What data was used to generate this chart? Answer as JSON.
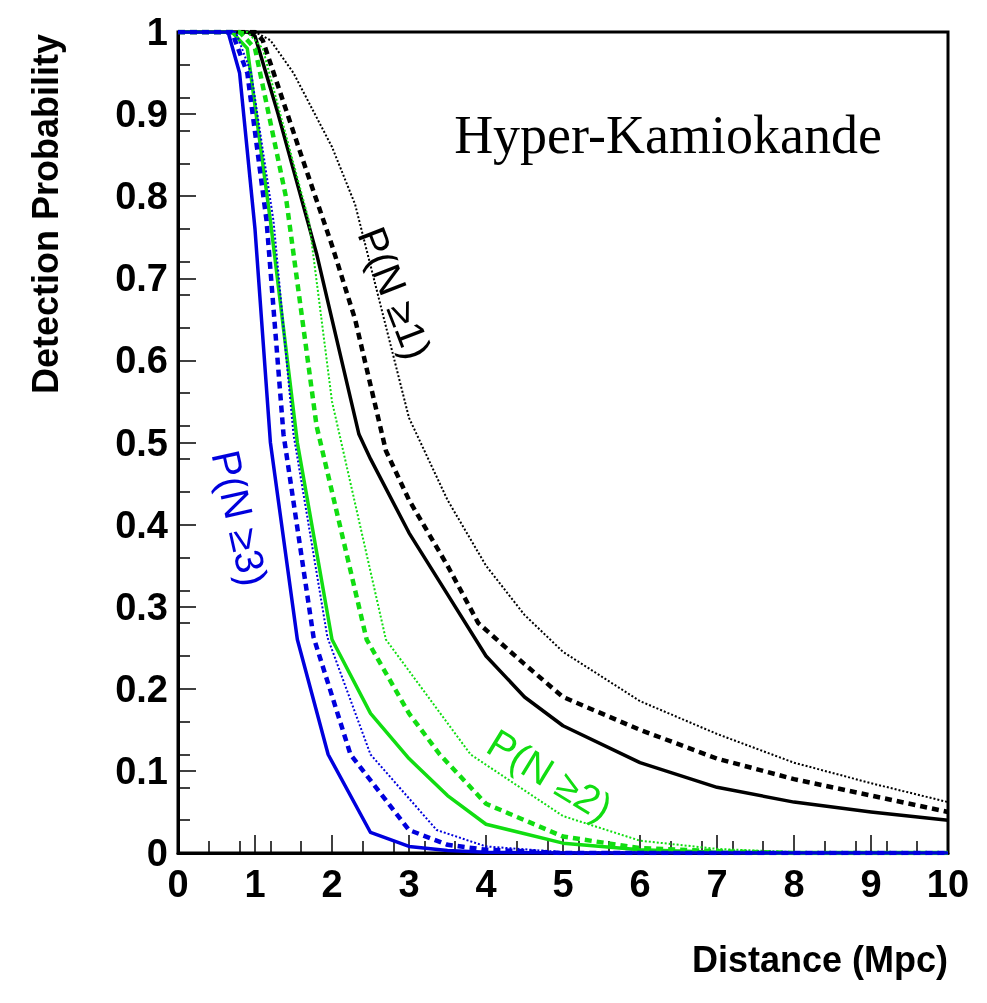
{
  "chart_data": {
    "type": "line",
    "xlabel": "Distance (Mpc)",
    "ylabel": "Detection Probability",
    "xlim": [
      0,
      10
    ],
    "ylim": [
      0,
      1
    ],
    "xticks": [
      0,
      1,
      2,
      3,
      4,
      5,
      6,
      7,
      8,
      9,
      10
    ],
    "yticks": [
      0,
      0.1,
      0.2,
      0.3,
      0.4,
      0.5,
      0.6,
      0.7,
      0.8,
      0.9,
      1
    ],
    "grid": false,
    "marker": "none",
    "annotations": [
      "Hyper-Kamiokande",
      "P(N ≥1)",
      "P(N ≥3)",
      "P(N ≥2)"
    ],
    "series": [
      {
        "color": "#000000",
        "line_style": "solid",
        "x": [
          0,
          0.9,
          1,
          1.3,
          1.8,
          2.35,
          2.5,
          3,
          3.5,
          4,
          4.5,
          5,
          6,
          7,
          8,
          9,
          10
        ],
        "values": [
          1,
          1,
          0.995,
          0.9,
          0.73,
          0.51,
          0.48,
          0.39,
          0.315,
          0.24,
          0.19,
          0.155,
          0.11,
          0.08,
          0.062,
          0.05,
          0.04
        ]
      },
      {
        "color": "#000000",
        "line_style": "dashed",
        "x": [
          0,
          1,
          1.1,
          1.6,
          2,
          2.3,
          2.7,
          3,
          3.5,
          3.9,
          4.5,
          5,
          6,
          7,
          8,
          9,
          10
        ],
        "values": [
          1,
          1,
          0.99,
          0.85,
          0.74,
          0.65,
          0.49,
          0.43,
          0.35,
          0.28,
          0.23,
          0.19,
          0.15,
          0.115,
          0.09,
          0.07,
          0.05
        ]
      },
      {
        "color": "#000000",
        "line_style": "dotted",
        "x": [
          0,
          1,
          1.2,
          1.5,
          2,
          2.3,
          3,
          3.5,
          4,
          4.5,
          5,
          6,
          7,
          8,
          9,
          10
        ],
        "values": [
          1,
          1,
          0.99,
          0.95,
          0.86,
          0.79,
          0.53,
          0.43,
          0.35,
          0.29,
          0.245,
          0.185,
          0.145,
          0.11,
          0.085,
          0.062
        ]
      },
      {
        "color": "#11dd11",
        "line_style": "solid",
        "x": [
          0,
          0.7,
          0.9,
          1.2,
          1.55,
          2,
          2.5,
          3,
          3.5,
          4,
          5,
          6,
          7,
          8,
          10
        ],
        "values": [
          1,
          1,
          0.98,
          0.77,
          0.5,
          0.26,
          0.17,
          0.115,
          0.07,
          0.035,
          0.012,
          0.004,
          0.001,
          0,
          0
        ]
      },
      {
        "color": "#11dd11",
        "line_style": "dashed",
        "x": [
          0,
          0.8,
          1,
          1.4,
          1.8,
          2.45,
          3,
          3.4,
          4,
          5,
          6,
          7,
          8,
          10
        ],
        "values": [
          1,
          1,
          0.98,
          0.8,
          0.52,
          0.26,
          0.17,
          0.12,
          0.06,
          0.02,
          0.006,
          0.002,
          0,
          0
        ]
      },
      {
        "color": "#11dd11",
        "line_style": "dotted",
        "x": [
          0,
          0.9,
          1.1,
          1.7,
          2,
          2.7,
          3.8,
          5,
          6,
          7,
          8,
          10
        ],
        "values": [
          1,
          1,
          0.98,
          0.77,
          0.55,
          0.26,
          0.12,
          0.045,
          0.015,
          0.005,
          0.001,
          0
        ]
      },
      {
        "color": "#0000dd",
        "line_style": "solid",
        "x": [
          0,
          0.65,
          0.8,
          1,
          1.2,
          1.55,
          1.95,
          2.5,
          3,
          3.5,
          4,
          5,
          10
        ],
        "values": [
          1,
          1,
          0.95,
          0.76,
          0.5,
          0.26,
          0.12,
          0.025,
          0.008,
          0.003,
          0.001,
          0,
          0
        ]
      },
      {
        "color": "#0000dd",
        "line_style": "dashed",
        "x": [
          0,
          0.7,
          0.9,
          1.15,
          1.37,
          1.76,
          2.24,
          3,
          3.5,
          4,
          5,
          10
        ],
        "values": [
          1,
          1,
          0.95,
          0.77,
          0.51,
          0.263,
          0.12,
          0.028,
          0.01,
          0.004,
          0,
          0
        ]
      },
      {
        "color": "#0000dd",
        "line_style": "dotted",
        "x": [
          0,
          0.75,
          0.95,
          1.24,
          1.5,
          1.94,
          2.5,
          3.36,
          4,
          5,
          10
        ],
        "values": [
          1,
          1,
          0.95,
          0.77,
          0.51,
          0.263,
          0.12,
          0.028,
          0.008,
          0.001,
          0
        ]
      }
    ]
  }
}
